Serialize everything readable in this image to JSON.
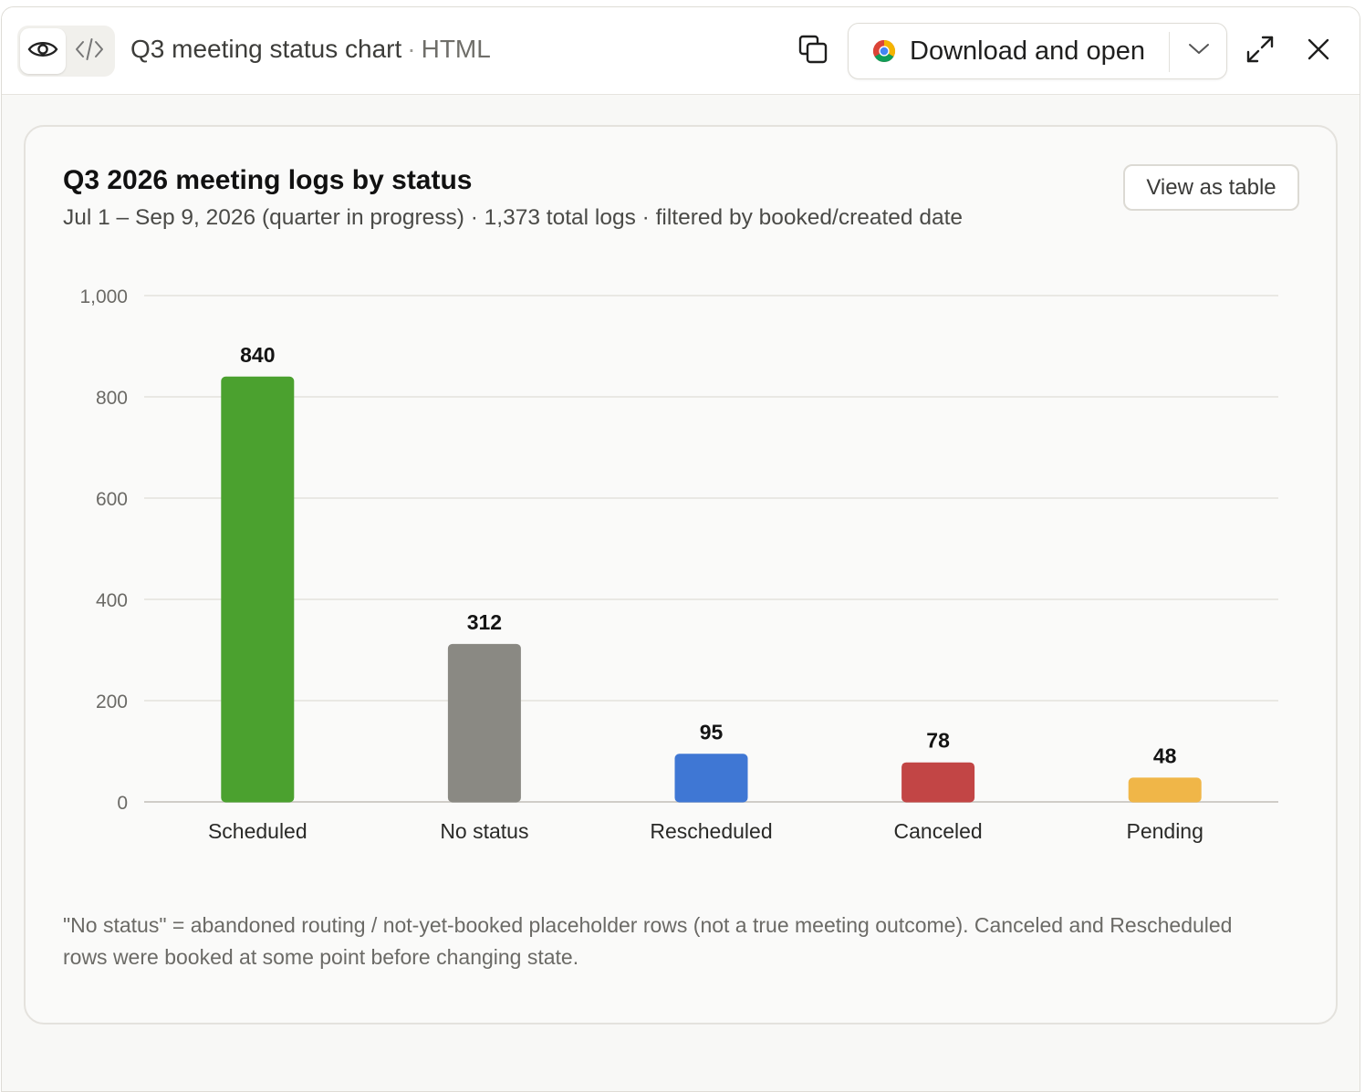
{
  "topbar": {
    "title": "Q3 meeting status chart",
    "separator": "·",
    "kind": "HTML",
    "download_label": "Download and open"
  },
  "card": {
    "title": "Q3 2026 meeting logs by status",
    "subtitle": "Jul 1 – Sep 9, 2026 (quarter in progress) · 1,373 total logs · filtered by booked/created date",
    "view_table_label": "View as table",
    "footnote": "\"No status\" = abandoned routing / not-yet-booked placeholder rows (not a true meeting outcome). Canceled and Rescheduled rows were booked at some point before changing state."
  },
  "chart_data": {
    "type": "bar",
    "title": "Q3 2026 meeting logs by status",
    "categories": [
      "Scheduled",
      "No status",
      "Rescheduled",
      "Canceled",
      "Pending"
    ],
    "values": [
      840,
      312,
      95,
      78,
      48
    ],
    "colors": [
      "#4ba12f",
      "#8a8983",
      "#3f77d4",
      "#c24545",
      "#f0b648"
    ],
    "yticks": [
      "0",
      "200",
      "400",
      "600",
      "800",
      "1,000"
    ],
    "ytick_values": [
      0,
      200,
      400,
      600,
      800,
      1000
    ],
    "ylim": [
      0,
      1000
    ],
    "grid": true,
    "data_labels": [
      "840",
      "312",
      "95",
      "78",
      "48"
    ]
  }
}
